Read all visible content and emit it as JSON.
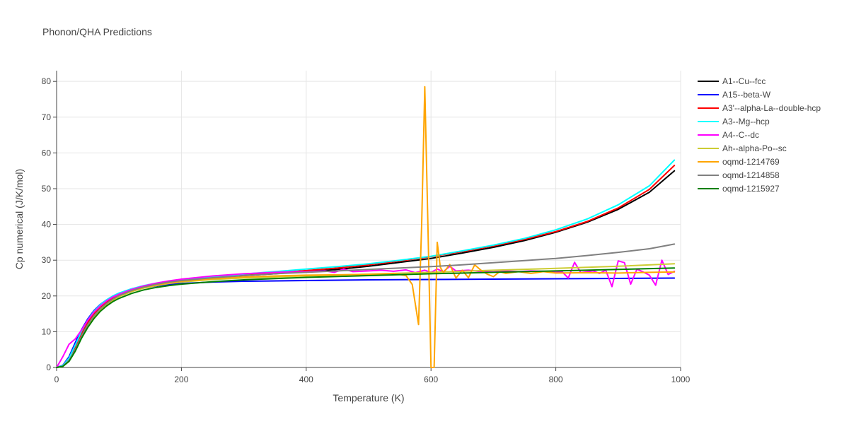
{
  "chart_data": {
    "type": "line",
    "title": "Phonon/QHA Predictions",
    "xlabel": "Temperature (K)",
    "ylabel": "Cp numerical (J/K/mol)",
    "xlim": [
      0,
      1000
    ],
    "ylim": [
      0,
      83
    ],
    "xticks": [
      0,
      200,
      400,
      600,
      800,
      1000
    ],
    "yticks": [
      0,
      10,
      20,
      30,
      40,
      50,
      60,
      70,
      80
    ],
    "grid": true,
    "legend": "right",
    "series": [
      {
        "name": "A1--Cu--fcc",
        "color": "#000000",
        "points": [
          [
            0,
            0
          ],
          [
            10,
            0.5
          ],
          [
            20,
            2.5
          ],
          [
            30,
            6
          ],
          [
            40,
            10
          ],
          [
            50,
            13.2
          ],
          [
            60,
            15.6
          ],
          [
            70,
            17.4
          ],
          [
            80,
            18.8
          ],
          [
            90,
            19.9
          ],
          [
            100,
            20.7
          ],
          [
            120,
            21.9
          ],
          [
            140,
            22.8
          ],
          [
            160,
            23.5
          ],
          [
            180,
            24
          ],
          [
            200,
            24.4
          ],
          [
            250,
            25.1
          ],
          [
            300,
            25.7
          ],
          [
            350,
            26.2
          ],
          [
            400,
            26.8
          ],
          [
            450,
            27.4
          ],
          [
            500,
            28.3
          ],
          [
            550,
            29.4
          ],
          [
            600,
            30.5
          ],
          [
            650,
            32
          ],
          [
            700,
            33.6
          ],
          [
            750,
            35.5
          ],
          [
            800,
            37.8
          ],
          [
            850,
            40.6
          ],
          [
            900,
            44.2
          ],
          [
            950,
            49
          ],
          [
            990,
            55
          ]
        ]
      },
      {
        "name": "A15--beta-W",
        "color": "#0000ff",
        "points": [
          [
            0,
            0
          ],
          [
            10,
            0.6
          ],
          [
            20,
            3
          ],
          [
            30,
            7
          ],
          [
            40,
            10.6
          ],
          [
            50,
            13.6
          ],
          [
            60,
            15.9
          ],
          [
            70,
            17.6
          ],
          [
            80,
            18.9
          ],
          [
            90,
            19.9
          ],
          [
            100,
            20.6
          ],
          [
            120,
            21.6
          ],
          [
            140,
            22.3
          ],
          [
            160,
            22.8
          ],
          [
            180,
            23.2
          ],
          [
            200,
            23.5
          ],
          [
            250,
            23.9
          ],
          [
            300,
            24.1
          ],
          [
            400,
            24.3
          ],
          [
            500,
            24.5
          ],
          [
            600,
            24.6
          ],
          [
            700,
            24.7
          ],
          [
            800,
            24.8
          ],
          [
            900,
            24.9
          ],
          [
            990,
            25
          ]
        ]
      },
      {
        "name": "A3'--alpha-La--double-hcp",
        "color": "#ff0000",
        "points": [
          [
            0,
            0
          ],
          [
            10,
            0.4
          ],
          [
            20,
            2.2
          ],
          [
            30,
            5.6
          ],
          [
            40,
            9.5
          ],
          [
            50,
            12.6
          ],
          [
            60,
            15
          ],
          [
            70,
            16.9
          ],
          [
            80,
            18.3
          ],
          [
            90,
            19.4
          ],
          [
            100,
            20.3
          ],
          [
            120,
            21.6
          ],
          [
            140,
            22.6
          ],
          [
            160,
            23.3
          ],
          [
            180,
            23.9
          ],
          [
            200,
            24.4
          ],
          [
            250,
            25.2
          ],
          [
            300,
            25.9
          ],
          [
            350,
            26.5
          ],
          [
            400,
            27.1
          ],
          [
            450,
            27.8
          ],
          [
            500,
            28.7
          ],
          [
            550,
            29.8
          ],
          [
            600,
            31
          ],
          [
            650,
            32.4
          ],
          [
            700,
            34
          ],
          [
            750,
            35.8
          ],
          [
            800,
            38
          ],
          [
            850,
            40.8
          ],
          [
            900,
            44.6
          ],
          [
            950,
            49.8
          ],
          [
            990,
            56.5
          ]
        ]
      },
      {
        "name": "A3--Mg--hcp",
        "color": "#00ffff",
        "points": [
          [
            0,
            0
          ],
          [
            10,
            0.5
          ],
          [
            20,
            2.6
          ],
          [
            30,
            6.3
          ],
          [
            40,
            10.2
          ],
          [
            50,
            13.3
          ],
          [
            60,
            15.7
          ],
          [
            70,
            17.5
          ],
          [
            80,
            18.9
          ],
          [
            90,
            20
          ],
          [
            100,
            20.8
          ],
          [
            120,
            22
          ],
          [
            140,
            22.9
          ],
          [
            160,
            23.6
          ],
          [
            180,
            24.1
          ],
          [
            200,
            24.6
          ],
          [
            250,
            25.4
          ],
          [
            300,
            26.1
          ],
          [
            350,
            26.8
          ],
          [
            400,
            27.5
          ],
          [
            450,
            28.2
          ],
          [
            500,
            29
          ],
          [
            550,
            30
          ],
          [
            600,
            31.1
          ],
          [
            650,
            32.6
          ],
          [
            700,
            34.2
          ],
          [
            750,
            36.1
          ],
          [
            800,
            38.5
          ],
          [
            850,
            41.5
          ],
          [
            900,
            45.5
          ],
          [
            950,
            50.8
          ],
          [
            990,
            58
          ]
        ]
      },
      {
        "name": "A4--C--dc",
        "color": "#ff00ff",
        "points": [
          [
            0,
            0
          ],
          [
            10,
            3
          ],
          [
            20,
            6.5
          ],
          [
            30,
            8
          ],
          [
            40,
            10.5
          ],
          [
            50,
            13.2
          ],
          [
            60,
            15.5
          ],
          [
            70,
            17.2
          ],
          [
            80,
            18.6
          ],
          [
            90,
            19.7
          ],
          [
            100,
            20.5
          ],
          [
            120,
            21.8
          ],
          [
            140,
            22.8
          ],
          [
            160,
            23.6
          ],
          [
            180,
            24.2
          ],
          [
            200,
            24.7
          ],
          [
            250,
            25.6
          ],
          [
            300,
            26.2
          ],
          [
            350,
            26.6
          ],
          [
            400,
            26.8
          ],
          [
            430,
            27
          ],
          [
            445,
            26.6
          ],
          [
            460,
            27.5
          ],
          [
            475,
            26.8
          ],
          [
            500,
            27
          ],
          [
            520,
            27.2
          ],
          [
            540,
            26.9
          ],
          [
            560,
            27.3
          ],
          [
            575,
            26.5
          ],
          [
            590,
            27.2
          ],
          [
            600,
            26.6
          ],
          [
            610,
            27.5
          ],
          [
            620,
            26.8
          ],
          [
            630,
            28.3
          ],
          [
            640,
            27
          ],
          [
            660,
            27.2
          ],
          [
            680,
            26.8
          ],
          [
            700,
            26.7
          ],
          [
            720,
            27
          ],
          [
            740,
            26.8
          ],
          [
            760,
            27
          ],
          [
            780,
            26.9
          ],
          [
            800,
            26.6
          ],
          [
            810,
            26.8
          ],
          [
            820,
            25
          ],
          [
            830,
            29.4
          ],
          [
            840,
            26.5
          ],
          [
            860,
            27
          ],
          [
            870,
            26.3
          ],
          [
            880,
            27.2
          ],
          [
            890,
            22.6
          ],
          [
            900,
            29.8
          ],
          [
            910,
            29.3
          ],
          [
            920,
            23.3
          ],
          [
            930,
            27.5
          ],
          [
            940,
            26.7
          ],
          [
            950,
            25.8
          ],
          [
            960,
            23
          ],
          [
            970,
            30
          ],
          [
            980,
            26
          ],
          [
            990,
            26.9
          ]
        ]
      },
      {
        "name": "Ah--alpha-Po--sc",
        "color": "#cccc33",
        "points": [
          [
            0,
            0
          ],
          [
            10,
            0.3
          ],
          [
            20,
            1.8
          ],
          [
            30,
            4.8
          ],
          [
            40,
            8.5
          ],
          [
            50,
            11.6
          ],
          [
            60,
            14.1
          ],
          [
            70,
            16.1
          ],
          [
            80,
            17.6
          ],
          [
            90,
            18.8
          ],
          [
            100,
            19.8
          ],
          [
            120,
            21.2
          ],
          [
            140,
            22.2
          ],
          [
            160,
            22.9
          ],
          [
            180,
            23.5
          ],
          [
            200,
            23.9
          ],
          [
            250,
            24.6
          ],
          [
            300,
            25
          ],
          [
            400,
            25.6
          ],
          [
            500,
            26.1
          ],
          [
            600,
            26.6
          ],
          [
            700,
            27.2
          ],
          [
            800,
            27.7
          ],
          [
            900,
            28.3
          ],
          [
            990,
            29
          ]
        ]
      },
      {
        "name": "oqmd-1214769",
        "color": "#ffa500",
        "points": [
          [
            0,
            0
          ],
          [
            10,
            0.3
          ],
          [
            20,
            2
          ],
          [
            30,
            5
          ],
          [
            40,
            8.8
          ],
          [
            50,
            11.9
          ],
          [
            60,
            14.4
          ],
          [
            70,
            16.3
          ],
          [
            80,
            17.8
          ],
          [
            90,
            19
          ],
          [
            100,
            20
          ],
          [
            120,
            21.4
          ],
          [
            140,
            22.4
          ],
          [
            160,
            23.1
          ],
          [
            180,
            23.7
          ],
          [
            200,
            24.1
          ],
          [
            250,
            24.8
          ],
          [
            300,
            25.3
          ],
          [
            350,
            25.6
          ],
          [
            400,
            25.8
          ],
          [
            450,
            25.9
          ],
          [
            500,
            26
          ],
          [
            540,
            26.3
          ],
          [
            560,
            25.7
          ],
          [
            570,
            23.2
          ],
          [
            580,
            12
          ],
          [
            585,
            40
          ],
          [
            590,
            78.5
          ],
          [
            595,
            40
          ],
          [
            600,
            0
          ],
          [
            605,
            0
          ],
          [
            610,
            35
          ],
          [
            615,
            28
          ],
          [
            620,
            26.5
          ],
          [
            630,
            28.8
          ],
          [
            640,
            25
          ],
          [
            650,
            27.2
          ],
          [
            660,
            25.1
          ],
          [
            670,
            28.7
          ],
          [
            680,
            27.2
          ],
          [
            690,
            26.1
          ],
          [
            700,
            25.4
          ],
          [
            710,
            26.8
          ],
          [
            720,
            26.3
          ],
          [
            740,
            26.8
          ],
          [
            760,
            26.3
          ],
          [
            780,
            26.8
          ],
          [
            800,
            26.4
          ],
          [
            850,
            26.5
          ],
          [
            900,
            26.4
          ],
          [
            950,
            26.6
          ],
          [
            990,
            26.7
          ]
        ]
      },
      {
        "name": "oqmd-1214858",
        "color": "#808080",
        "points": [
          [
            0,
            0
          ],
          [
            10,
            0.3
          ],
          [
            20,
            2
          ],
          [
            30,
            5
          ],
          [
            40,
            8.8
          ],
          [
            50,
            12
          ],
          [
            60,
            14.5
          ],
          [
            70,
            16.4
          ],
          [
            80,
            17.9
          ],
          [
            90,
            19.1
          ],
          [
            100,
            20.1
          ],
          [
            120,
            21.5
          ],
          [
            140,
            22.5
          ],
          [
            160,
            23.3
          ],
          [
            180,
            23.9
          ],
          [
            200,
            24.3
          ],
          [
            250,
            25.1
          ],
          [
            300,
            25.7
          ],
          [
            350,
            26.2
          ],
          [
            400,
            26.6
          ],
          [
            450,
            27
          ],
          [
            500,
            27.4
          ],
          [
            550,
            27.8
          ],
          [
            600,
            28.2
          ],
          [
            650,
            28.7
          ],
          [
            700,
            29.3
          ],
          [
            750,
            29.9
          ],
          [
            800,
            30.5
          ],
          [
            850,
            31.3
          ],
          [
            900,
            32.2
          ],
          [
            950,
            33.2
          ],
          [
            990,
            34.5
          ]
        ]
      },
      {
        "name": "oqmd-1215927",
        "color": "#008000",
        "points": [
          [
            0,
            0
          ],
          [
            10,
            0.3
          ],
          [
            20,
            1.7
          ],
          [
            30,
            4.6
          ],
          [
            40,
            8.2
          ],
          [
            50,
            11.2
          ],
          [
            60,
            13.7
          ],
          [
            70,
            15.7
          ],
          [
            80,
            17.2
          ],
          [
            90,
            18.4
          ],
          [
            100,
            19.3
          ],
          [
            120,
            20.7
          ],
          [
            140,
            21.7
          ],
          [
            160,
            22.4
          ],
          [
            180,
            22.9
          ],
          [
            200,
            23.3
          ],
          [
            250,
            24
          ],
          [
            300,
            24.5
          ],
          [
            400,
            25.2
          ],
          [
            500,
            25.7
          ],
          [
            600,
            26.2
          ],
          [
            700,
            26.6
          ],
          [
            800,
            27
          ],
          [
            900,
            27.4
          ],
          [
            990,
            27.8
          ]
        ]
      }
    ]
  }
}
